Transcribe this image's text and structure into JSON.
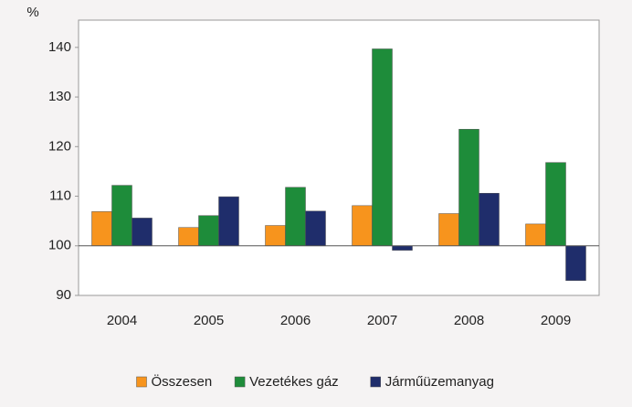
{
  "chart_data": {
    "type": "bar",
    "y_label": "%",
    "categories": [
      "2004",
      "2005",
      "2006",
      "2007",
      "2008",
      "2009"
    ],
    "series": [
      {
        "name": "Összesen",
        "color": "#f7941d",
        "values": [
          106.9,
          103.7,
          104.1,
          108.1,
          106.5,
          104.4
        ]
      },
      {
        "name": "Vezetékes gáz",
        "color": "#1e8c3a",
        "values": [
          112.2,
          106.1,
          111.8,
          139.7,
          123.5,
          116.8
        ]
      },
      {
        "name": "Járműüzemanyag",
        "color": "#1f2d6b",
        "values": [
          105.6,
          109.9,
          107.0,
          99.1,
          110.6,
          93.0
        ]
      }
    ],
    "bar_base": 100,
    "ylim": [
      90,
      145.5
    ],
    "yticks": [
      90,
      100,
      110,
      120,
      130,
      140
    ],
    "legend": "bottom"
  }
}
